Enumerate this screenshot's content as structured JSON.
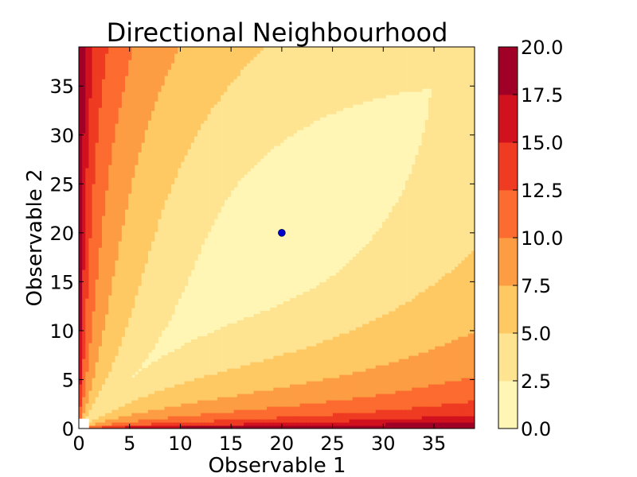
{
  "chart_data": {
    "type": "heatmap",
    "subtype": "filled-contour",
    "title": "Directional Neighbourhood",
    "xlabel": "Observable 1",
    "ylabel": "Observable 2",
    "xlim": [
      0,
      39
    ],
    "ylim": [
      0,
      39
    ],
    "xticks": [
      0,
      5,
      10,
      15,
      20,
      25,
      30,
      35
    ],
    "yticks": [
      0,
      5,
      10,
      15,
      20,
      25,
      30,
      35
    ],
    "colorbar": {
      "levels": [
        0.0,
        2.5,
        5.0,
        7.5,
        10.0,
        12.5,
        15.0,
        17.5,
        20.0
      ],
      "tick_labels": [
        "0.0",
        "2.5",
        "5.0",
        "7.5",
        "10.0",
        "12.5",
        "15.0",
        "17.5",
        "20.0"
      ],
      "colors": [
        "#fff5b4",
        "#fee391",
        "#fec863",
        "#fd9d43",
        "#fc6b2f",
        "#ef3b22",
        "#d1111e",
        "#a10026"
      ]
    },
    "marker": {
      "x": 20,
      "y": 20,
      "color": "#0000cc"
    },
    "colormap": "YlOrRd",
    "grid": false
  }
}
